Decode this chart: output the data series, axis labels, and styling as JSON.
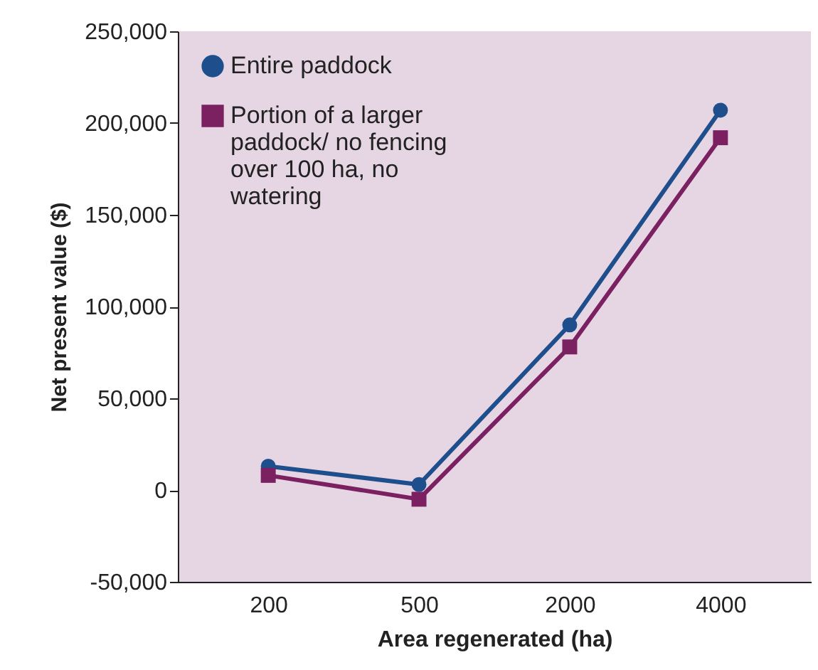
{
  "chart_data": {
    "type": "line",
    "xlabel": "Area regenerated (ha)",
    "ylabel": "Net present value ($)",
    "categories": [
      "200",
      "500",
      "2000",
      "4000"
    ],
    "series": [
      {
        "name": "Entire paddock",
        "color": "#1f4e8c",
        "marker": "circle",
        "values": [
          13000,
          3000,
          90000,
          207000
        ]
      },
      {
        "name": "Portion of a larger paddock/ no fencing over 100 ha, no watering",
        "color": "#7b2162",
        "marker": "square",
        "values": [
          8000,
          -5000,
          78000,
          192000
        ]
      }
    ],
    "ylim": [
      -50000,
      250000
    ],
    "yticks": [
      {
        "value": -50000,
        "label": "-50,000"
      },
      0,
      {
        "value": 50000,
        "label": "50,000"
      },
      {
        "value": 100000,
        "label": "100,000"
      },
      {
        "value": 150000,
        "label": "150,000"
      },
      {
        "value": 200000,
        "label": "200,000"
      },
      {
        "value": 250000,
        "label": "250,000"
      }
    ],
    "grid": false,
    "legend": "top left"
  }
}
